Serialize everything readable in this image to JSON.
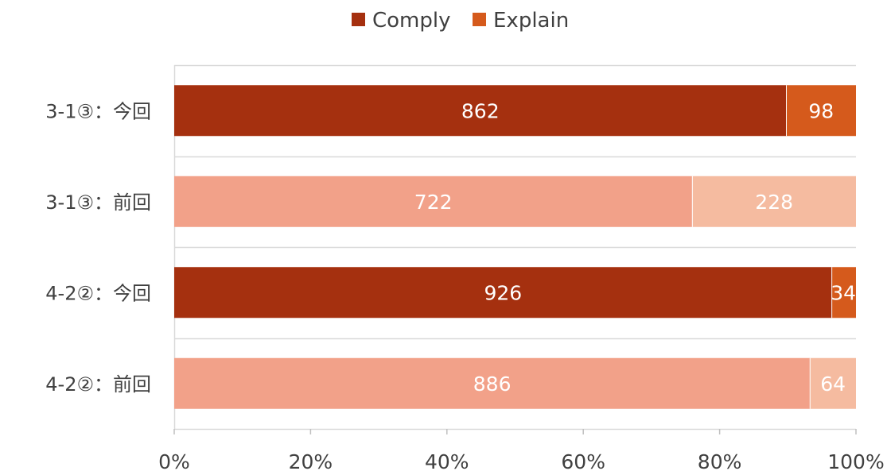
{
  "chart_data": {
    "type": "bar",
    "orientation": "horizontal",
    "stacked": "percent",
    "categories": [
      "3-1③：今回",
      "3-1③：前回",
      "4-2②：今回",
      "4-2②：前回"
    ],
    "series": [
      {
        "name": "Comply",
        "values": [
          862,
          722,
          926,
          886
        ]
      },
      {
        "name": "Explain",
        "values": [
          98,
          228,
          34,
          64
        ]
      }
    ],
    "bar_colors": [
      [
        "#A5300F",
        "#D55A1C"
      ],
      [
        "#F2A189",
        "#F5BBA0"
      ],
      [
        "#A5300F",
        "#D55A1C"
      ],
      [
        "#F2A189",
        "#F5BBA0"
      ]
    ],
    "legend": {
      "position": "top",
      "items": [
        {
          "label": "Comply",
          "color": "#A5300F"
        },
        {
          "label": "Explain",
          "color": "#D55A1C"
        }
      ]
    },
    "x_ticks": [
      "0%",
      "20%",
      "40%",
      "60%",
      "80%",
      "100%"
    ],
    "xlim": [
      0,
      100
    ],
    "grid": true,
    "data_labels": true
  }
}
